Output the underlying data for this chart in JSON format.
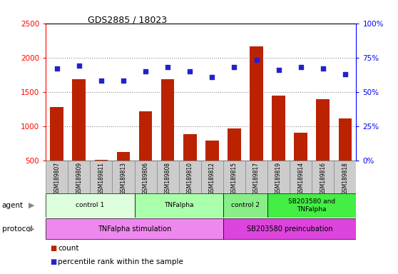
{
  "title": "GDS2885 / 18023",
  "samples": [
    "GSM189807",
    "GSM189809",
    "GSM189811",
    "GSM189813",
    "GSM189806",
    "GSM189808",
    "GSM189810",
    "GSM189812",
    "GSM189815",
    "GSM189817",
    "GSM189819",
    "GSM189814",
    "GSM189816",
    "GSM189818"
  ],
  "counts": [
    1280,
    1680,
    510,
    620,
    1220,
    1680,
    880,
    790,
    960,
    2160,
    1440,
    900,
    1390,
    1110
  ],
  "percentiles": [
    67,
    69,
    58,
    58,
    65,
    68,
    65,
    61,
    68,
    73,
    66,
    68,
    67,
    63
  ],
  "bar_color": "#bb2200",
  "dot_color": "#2222cc",
  "ylim_left": [
    500,
    2500
  ],
  "ylim_right": [
    0,
    100
  ],
  "yticks_left": [
    500,
    1000,
    1500,
    2000,
    2500
  ],
  "yticks_right": [
    0,
    25,
    50,
    75,
    100
  ],
  "agent_groups": [
    {
      "label": "control 1",
      "start": 0,
      "end": 4,
      "color": "#ddffdd"
    },
    {
      "label": "TNFalpha",
      "start": 4,
      "end": 8,
      "color": "#aaffaa"
    },
    {
      "label": "control 2",
      "start": 8,
      "end": 10,
      "color": "#88ee88"
    },
    {
      "label": "SB203580 and\nTNFalpha",
      "start": 10,
      "end": 14,
      "color": "#44ee44"
    }
  ],
  "protocol_groups": [
    {
      "label": "TNFalpha stimulation",
      "start": 0,
      "end": 8,
      "color": "#ee88ee"
    },
    {
      "label": "SB203580 preincubation",
      "start": 8,
      "end": 14,
      "color": "#dd44dd"
    }
  ],
  "bg_color": "#ffffff",
  "grid_color": "#888888",
  "sample_box_color": "#cccccc",
  "sample_box_edge": "#888888"
}
